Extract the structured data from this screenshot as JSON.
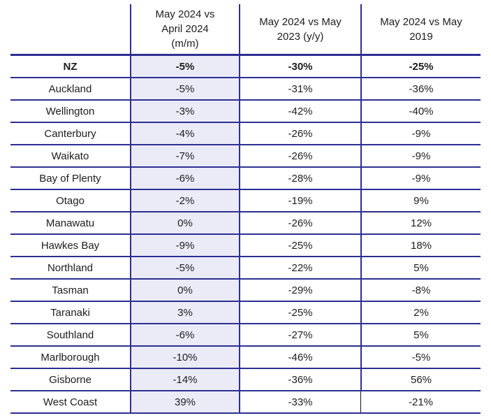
{
  "colors": {
    "grid_line_blue": "#2d2f92",
    "highlight_column_lavender": "#ebebf8",
    "text": "#1d1d1f",
    "last_row_divider_black": "#111111"
  },
  "chart_data": {
    "type": "table",
    "title": "",
    "columns": [
      "May 2024 vs\nApril 2024\n(m/m)",
      "May 2024 vs May\n2023 (y/y)",
      "May 2024 vs May\n2019"
    ],
    "regions": [
      "NZ",
      "Auckland",
      "Wellington",
      "Canterbury",
      "Waikato",
      "Bay of Plenty",
      "Otago",
      "Manawatu",
      "Hawkes Bay",
      "Northland",
      "Tasman",
      "Taranaki",
      "Southland",
      "Marlborough",
      "Gisborne",
      "West Coast"
    ],
    "values": [
      [
        "-5%",
        "-30%",
        "-25%"
      ],
      [
        "-5%",
        "-31%",
        "-36%"
      ],
      [
        "-3%",
        "-42%",
        "-40%"
      ],
      [
        "-4%",
        "-26%",
        "-9%"
      ],
      [
        "-7%",
        "-26%",
        "-9%"
      ],
      [
        "-6%",
        "-28%",
        "-9%"
      ],
      [
        "-2%",
        "-19%",
        "9%"
      ],
      [
        "0%",
        "-26%",
        "12%"
      ],
      [
        "-9%",
        "-25%",
        "18%"
      ],
      [
        "-5%",
        "-22%",
        "5%"
      ],
      [
        "0%",
        "-29%",
        "-8%"
      ],
      [
        "3%",
        "-25%",
        "2%"
      ],
      [
        "-6%",
        "-27%",
        "5%"
      ],
      [
        "-10%",
        "-46%",
        "-5%"
      ],
      [
        "-14%",
        "-36%",
        "56%"
      ],
      [
        "39%",
        "-33%",
        "-21%"
      ]
    ],
    "bold_row_index": 0,
    "layout": {
      "grid": "on",
      "highlighted_column": 0
    }
  }
}
